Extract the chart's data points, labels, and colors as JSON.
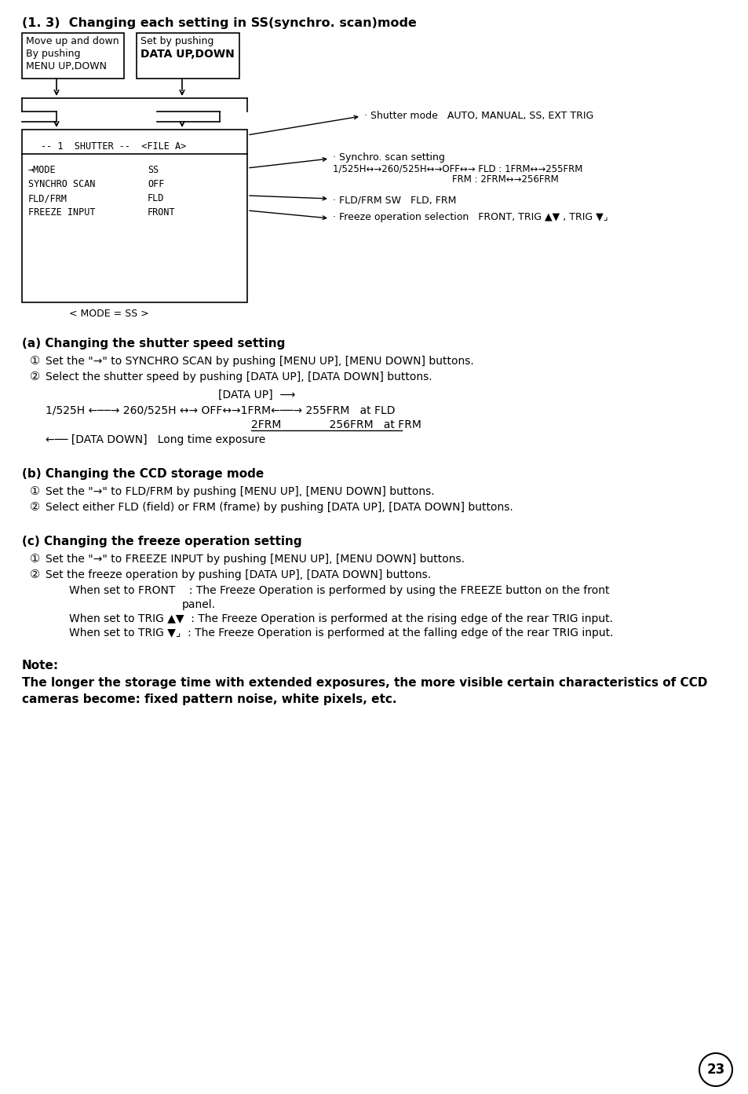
{
  "bg_color": "#ffffff",
  "text_color": "#000000",
  "page_number": "23",
  "title": "(1. 3)  Changing each setting in SS(synchro. scan)mode",
  "box1_lines": [
    "Move up and down",
    "By pushing",
    "MENU UP,DOWN"
  ],
  "box2_lines": [
    "Set by pushing",
    "DATA UP,DOWN"
  ],
  "lcd_line1": "-- 1  SHUTTER --  <FILE A>",
  "lcd_rows": [
    [
      "→MODE",
      "SS"
    ],
    [
      "SYNCHRO SCAN",
      "OFF"
    ],
    [
      "FLD/FRM",
      "FLD"
    ],
    [
      "FREEZE INPUT",
      "FRONT"
    ]
  ],
  "ann1": "· Shutter mode   AUTO, MANUAL, SS, EXT TRIG",
  "ann2a": "· Synchro. scan setting",
  "ann2b": "1/525H↔→260/525H↔→OFF↔→ FLD : 1FRM↔→255FRM",
  "ann2c": "FRM : 2FRM↔→256FRM",
  "ann3": "· FLD/FRM SW   FLD, FRM",
  "ann4": "· Freeze operation selection   FRONT, TRIG ▲▼ , TRIG ▼⌟",
  "mode_label": "< MODE = SS >",
  "sec_a": "(a) Changing the shutter speed setting",
  "sec_a1": "Set the \"→\" to SYNCHRO SCAN by pushing [MENU UP], [MENU DOWN] buttons.",
  "sec_a2": "Select the shutter speed by pushing [DATA UP], [DATA DOWN] buttons.",
  "data_up_label": "[DATA UP]  ⟶",
  "speed_line": "1/525H ←──→ 260/525H ↔→ OFF↔→1FRM←──→ 255FRM   at FLD",
  "speed_line2": "2FRM              256FRM   at FRM",
  "data_down_label": "←── [DATA DOWN]   Long time exposure",
  "sec_b": "(b) Changing the CCD storage mode",
  "sec_b1": "Set the \"→\" to FLD/FRM by pushing [MENU UP], [MENU DOWN] buttons.",
  "sec_b2": "Select either FLD (field) or FRM (frame) by pushing [DATA UP], [DATA DOWN] buttons.",
  "sec_c": "(c) Changing the freeze operation setting",
  "sec_c1": "Set the \"→\" to FREEZE INPUT by pushing [MENU UP], [MENU DOWN] buttons.",
  "sec_c2": "Set the freeze operation by pushing [DATA UP], [DATA DOWN] buttons.",
  "sec_c_front": "When set to FRONT    : The Freeze Operation is performed by using the FREEZE button on the front",
  "sec_c_front2": "panel.",
  "sec_c_trig1": "When set to TRIG ▲▼  : The Freeze Operation is performed at the rising edge of the rear TRIG input.",
  "sec_c_trig2": "When set to TRIG ▼⌟  : The Freeze Operation is performed at the falling edge of the rear TRIG input.",
  "note_title": "Note:",
  "note1": "The longer the storage time with extended exposures, the more visible certain characteristics of CCD",
  "note2": "cameras become: fixed pattern noise, white pixels, etc."
}
